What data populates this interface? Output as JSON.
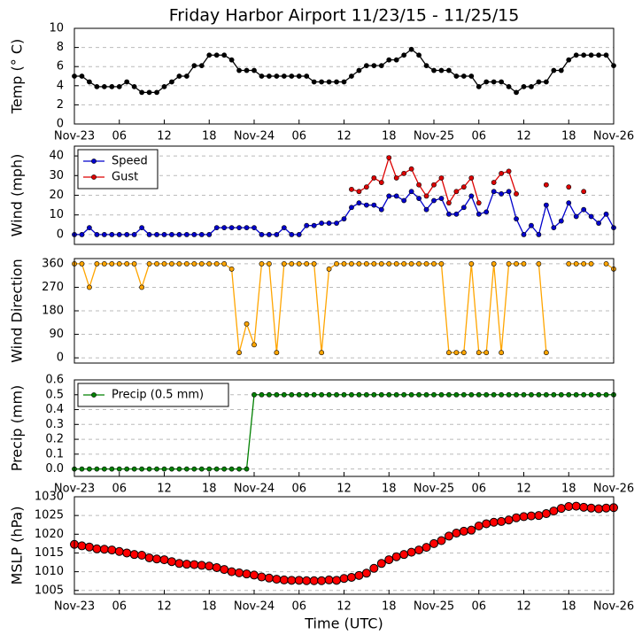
{
  "chart_data": [
    {
      "type": "line",
      "title": "Friday Harbor Airport 11/23/15 - 11/25/15",
      "ylabel": "Temp (° C)",
      "color": "#000000",
      "x": [
        0,
        1,
        2,
        3,
        4,
        5,
        6,
        7,
        8,
        9,
        10,
        11,
        12,
        13,
        14,
        15,
        16,
        17,
        18,
        19,
        20,
        21,
        22,
        23,
        24,
        25,
        26,
        27,
        28,
        29,
        30,
        31,
        32,
        33,
        34,
        35,
        36,
        37,
        38,
        39,
        40,
        41,
        42,
        43,
        44,
        45,
        46,
        47,
        48,
        49,
        50,
        51,
        52,
        53,
        54,
        55,
        56,
        57,
        58,
        59,
        60,
        61,
        62,
        63,
        64,
        65,
        66,
        67,
        68,
        69,
        70,
        71,
        72
      ],
      "values": [
        5,
        5,
        4.4,
        3.9,
        3.9,
        3.9,
        3.9,
        4.4,
        3.9,
        3.3,
        3.3,
        3.3,
        3.9,
        4.4,
        5,
        5,
        6.1,
        6.1,
        7.2,
        7.2,
        7.2,
        6.7,
        5.6,
        5.6,
        5.6,
        5,
        5,
        5,
        5,
        5,
        5,
        5,
        4.4,
        4.4,
        4.4,
        4.4,
        4.4,
        5,
        5.6,
        6.1,
        6.1,
        6.1,
        6.7,
        6.7,
        7.2,
        7.8,
        7.2,
        6.1,
        5.6,
        5.6,
        5.6,
        5,
        5,
        5,
        3.9,
        4.4,
        4.4,
        4.4,
        3.9,
        3.3,
        3.9,
        3.9,
        4.4,
        4.4,
        5.6,
        5.6,
        6.7,
        7.2,
        7.2,
        7.2,
        7.2,
        7.2,
        6.1
      ],
      "xlim": [
        0,
        72
      ],
      "xticks": [
        {
          "value": 0,
          "label": "Nov-23"
        },
        {
          "value": 6,
          "label": "06"
        },
        {
          "value": 12,
          "label": "12"
        },
        {
          "value": 18,
          "label": "18"
        },
        {
          "value": 24,
          "label": "Nov-24"
        },
        {
          "value": 30,
          "label": "06"
        },
        {
          "value": 36,
          "label": "12"
        },
        {
          "value": 42,
          "label": "18"
        },
        {
          "value": 48,
          "label": "Nov-25"
        },
        {
          "value": 54,
          "label": "06"
        },
        {
          "value": 60,
          "label": "12"
        },
        {
          "value": 66,
          "label": "18"
        },
        {
          "value": 72,
          "label": "Nov-26"
        }
      ],
      "ylim": [
        0,
        10
      ],
      "yticks": [
        0,
        2,
        4,
        6,
        8,
        10
      ],
      "grid": true
    },
    {
      "type": "line",
      "ylabel": "Wind (mph)",
      "legend": "upper left",
      "x": [
        0,
        1,
        2,
        3,
        4,
        5,
        6,
        7,
        8,
        9,
        10,
        11,
        12,
        13,
        14,
        15,
        16,
        17,
        18,
        19,
        20,
        21,
        22,
        23,
        24,
        25,
        26,
        27,
        28,
        29,
        30,
        31,
        32,
        33,
        34,
        35,
        36,
        37,
        38,
        39,
        40,
        41,
        42,
        43,
        44,
        45,
        46,
        47,
        48,
        49,
        50,
        51,
        52,
        53,
        54,
        55,
        56,
        57,
        58,
        59,
        60,
        61,
        62,
        63,
        64,
        65,
        66,
        67,
        68,
        69,
        70,
        71,
        72
      ],
      "series": [
        {
          "name": "Speed",
          "color": "#0000cc",
          "values": [
            0,
            0,
            3.5,
            0,
            0,
            0,
            0,
            0,
            0,
            3.5,
            0,
            0,
            0,
            0,
            0,
            0,
            0,
            0,
            0,
            3.5,
            3.5,
            3.5,
            3.5,
            3.5,
            3.5,
            0,
            0,
            0,
            3.5,
            0,
            0,
            4.6,
            4.6,
            5.8,
            5.8,
            5.8,
            8,
            13.8,
            16.1,
            15,
            15,
            12.7,
            19.6,
            19.6,
            17.3,
            21.9,
            18.4,
            12.7,
            17.3,
            18.4,
            10.4,
            10.4,
            13.8,
            19.6,
            10.4,
            11.5,
            21.9,
            20.7,
            21.9,
            8,
            0,
            4.6,
            0,
            15,
            3.5,
            6.9,
            16.1,
            9.2,
            12.7,
            9.2,
            5.8,
            10.4,
            3.5
          ]
        },
        {
          "name": "Gust",
          "color": "#dd0000",
          "values": [
            null,
            null,
            null,
            null,
            null,
            null,
            null,
            null,
            null,
            null,
            null,
            null,
            null,
            null,
            null,
            null,
            null,
            null,
            null,
            null,
            null,
            null,
            null,
            null,
            null,
            null,
            null,
            null,
            null,
            null,
            null,
            null,
            null,
            null,
            null,
            null,
            null,
            23,
            21.9,
            24.2,
            28.8,
            26.5,
            39.1,
            28.8,
            31.1,
            33.4,
            25.3,
            19.6,
            25.3,
            28.8,
            16.1,
            21.9,
            24.2,
            28.8,
            16.1,
            null,
            26.5,
            31.1,
            32.2,
            20.7,
            null,
            null,
            null,
            25.3,
            null,
            null,
            24.2,
            null,
            21.9,
            null,
            null,
            null,
            null
          ]
        }
      ],
      "xlim": [
        0,
        72
      ],
      "ylim": [
        -5,
        45
      ],
      "yticks": [
        0,
        10,
        20,
        30,
        40
      ],
      "grid": true
    },
    {
      "type": "line",
      "ylabel": "Wind Direction",
      "color": "#ffa500",
      "x": [
        0,
        1,
        2,
        3,
        4,
        5,
        6,
        7,
        8,
        9,
        10,
        11,
        12,
        13,
        14,
        15,
        16,
        17,
        18,
        19,
        20,
        21,
        22,
        23,
        24,
        25,
        26,
        27,
        28,
        29,
        30,
        31,
        32,
        33,
        34,
        35,
        36,
        37,
        38,
        39,
        40,
        41,
        42,
        43,
        44,
        45,
        46,
        47,
        48,
        49,
        50,
        51,
        52,
        53,
        54,
        55,
        56,
        57,
        58,
        59,
        60,
        61,
        62,
        63,
        64,
        65,
        66,
        67,
        68,
        69,
        70,
        71,
        72
      ],
      "values": [
        360,
        360,
        270,
        360,
        360,
        360,
        360,
        360,
        360,
        270,
        360,
        360,
        360,
        360,
        360,
        360,
        360,
        360,
        360,
        360,
        360,
        340,
        20,
        130,
        50,
        360,
        360,
        20,
        360,
        360,
        360,
        360,
        360,
        20,
        340,
        360,
        360,
        360,
        360,
        360,
        360,
        360,
        360,
        360,
        360,
        360,
        360,
        360,
        360,
        360,
        20,
        20,
        20,
        360,
        20,
        20,
        360,
        20,
        360,
        360,
        360,
        null,
        360,
        20,
        null,
        null,
        360,
        360,
        360,
        360,
        null,
        360,
        340
      ],
      "xlim": [
        0,
        72
      ],
      "ylim": [
        -20,
        380
      ],
      "yticks": [
        0,
        90,
        180,
        270,
        360
      ],
      "grid": true
    },
    {
      "type": "line",
      "ylabel": "Precip (mm)",
      "legend": "upper left",
      "x": [
        0,
        1,
        2,
        3,
        4,
        5,
        6,
        7,
        8,
        9,
        10,
        11,
        12,
        13,
        14,
        15,
        16,
        17,
        18,
        19,
        20,
        21,
        22,
        23,
        24,
        25,
        26,
        27,
        28,
        29,
        30,
        31,
        32,
        33,
        34,
        35,
        36,
        37,
        38,
        39,
        40,
        41,
        42,
        43,
        44,
        45,
        46,
        47,
        48,
        49,
        50,
        51,
        52,
        53,
        54,
        55,
        56,
        57,
        58,
        59,
        60,
        61,
        62,
        63,
        64,
        65,
        66,
        67,
        68,
        69,
        70,
        71,
        72
      ],
      "series": [
        {
          "name": "Precip (0.5 mm)",
          "color": "#008000",
          "values": [
            0,
            0,
            0,
            0,
            0,
            0,
            0,
            0,
            0,
            0,
            0,
            0,
            0,
            0,
            0,
            0,
            0,
            0,
            0,
            0,
            0,
            0,
            0,
            0,
            0.5,
            0.5,
            0.5,
            0.5,
            0.5,
            0.5,
            0.5,
            0.5,
            0.5,
            0.5,
            0.5,
            0.5,
            0.5,
            0.5,
            0.5,
            0.5,
            0.5,
            0.5,
            0.5,
            0.5,
            0.5,
            0.5,
            0.5,
            0.5,
            0.5,
            0.5,
            0.5,
            0.5,
            0.5,
            0.5,
            0.5,
            0.5,
            0.5,
            0.5,
            0.5,
            0.5,
            0.5,
            0.5,
            0.5,
            0.5,
            0.5,
            0.5,
            0.5,
            0.5,
            0.5,
            0.5,
            0.5,
            0.5,
            0.5
          ]
        }
      ],
      "xlim": [
        0,
        72
      ],
      "xticks": [
        {
          "value": 0,
          "label": "Nov-23"
        },
        {
          "value": 6,
          "label": "06"
        },
        {
          "value": 12,
          "label": "12"
        },
        {
          "value": 18,
          "label": "18"
        },
        {
          "value": 24,
          "label": "Nov-24"
        },
        {
          "value": 30,
          "label": "06"
        },
        {
          "value": 36,
          "label": "12"
        },
        {
          "value": 42,
          "label": "18"
        },
        {
          "value": 48,
          "label": "Nov-25"
        },
        {
          "value": 54,
          "label": "06"
        },
        {
          "value": 60,
          "label": "12"
        },
        {
          "value": 66,
          "label": "18"
        },
        {
          "value": 72,
          "label": "Nov-26"
        }
      ],
      "ylim": [
        -0.05,
        0.6
      ],
      "yticks": [
        {
          "value": 0,
          "label": "0.0"
        },
        {
          "value": 0.1,
          "label": "0.1"
        },
        {
          "value": 0.2,
          "label": "0.2"
        },
        {
          "value": 0.3,
          "label": "0.3"
        },
        {
          "value": 0.4,
          "label": "0.4"
        },
        {
          "value": 0.5,
          "label": "0.5"
        },
        {
          "value": 0.6,
          "label": "0.6"
        }
      ],
      "grid": true
    },
    {
      "type": "scatter",
      "ylabel": "MSLP (hPa)",
      "xlabel": "Time (UTC)",
      "color": "#ff0000",
      "x": [
        0,
        1,
        2,
        3,
        4,
        5,
        6,
        7,
        8,
        9,
        10,
        11,
        12,
        13,
        14,
        15,
        16,
        17,
        18,
        19,
        20,
        21,
        22,
        23,
        24,
        25,
        26,
        27,
        28,
        29,
        30,
        31,
        32,
        33,
        34,
        35,
        36,
        37,
        38,
        39,
        40,
        41,
        42,
        43,
        44,
        45,
        46,
        47,
        48,
        49,
        50,
        51,
        52,
        53,
        54,
        55,
        56,
        57,
        58,
        59,
        60,
        61,
        62,
        63,
        64,
        65,
        66,
        67,
        68,
        69,
        70,
        71,
        72
      ],
      "values": [
        1017.3,
        1016.9,
        1016.6,
        1016.1,
        1016,
        1015.8,
        1015.4,
        1015,
        1014.6,
        1014.4,
        1013.7,
        1013.4,
        1013.2,
        1012.7,
        1012.2,
        1012,
        1011.9,
        1011.7,
        1011.5,
        1011.1,
        1010.6,
        1010,
        1009.7,
        1009.4,
        1009.1,
        1008.6,
        1008.3,
        1008,
        1007.8,
        1007.7,
        1007.7,
        1007.6,
        1007.6,
        1007.6,
        1007.8,
        1007.7,
        1008.2,
        1008.5,
        1009,
        1009.6,
        1010.9,
        1012.2,
        1013.2,
        1014,
        1014.6,
        1015.2,
        1015.8,
        1016.5,
        1017.5,
        1018.3,
        1019.5,
        1020.3,
        1020.8,
        1021.1,
        1022.2,
        1022.8,
        1023.2,
        1023.4,
        1023.8,
        1024.4,
        1024.7,
        1024.9,
        1025,
        1025.5,
        1026.2,
        1026.9,
        1027.4,
        1027.5,
        1027.2,
        1027,
        1026.8,
        1027,
        1027.1
      ],
      "xlim": [
        0,
        72
      ],
      "xticks": [
        {
          "value": 0,
          "label": "Nov-23"
        },
        {
          "value": 6,
          "label": "06"
        },
        {
          "value": 12,
          "label": "12"
        },
        {
          "value": 18,
          "label": "18"
        },
        {
          "value": 24,
          "label": "Nov-24"
        },
        {
          "value": 30,
          "label": "06"
        },
        {
          "value": 36,
          "label": "12"
        },
        {
          "value": 42,
          "label": "18"
        },
        {
          "value": 48,
          "label": "Nov-25"
        },
        {
          "value": 54,
          "label": "06"
        },
        {
          "value": 60,
          "label": "12"
        },
        {
          "value": 66,
          "label": "18"
        },
        {
          "value": 72,
          "label": "Nov-26"
        }
      ],
      "ylim": [
        1004,
        1030
      ],
      "yticks": [
        1005,
        1010,
        1015,
        1020,
        1025,
        1030
      ],
      "grid": true
    }
  ]
}
